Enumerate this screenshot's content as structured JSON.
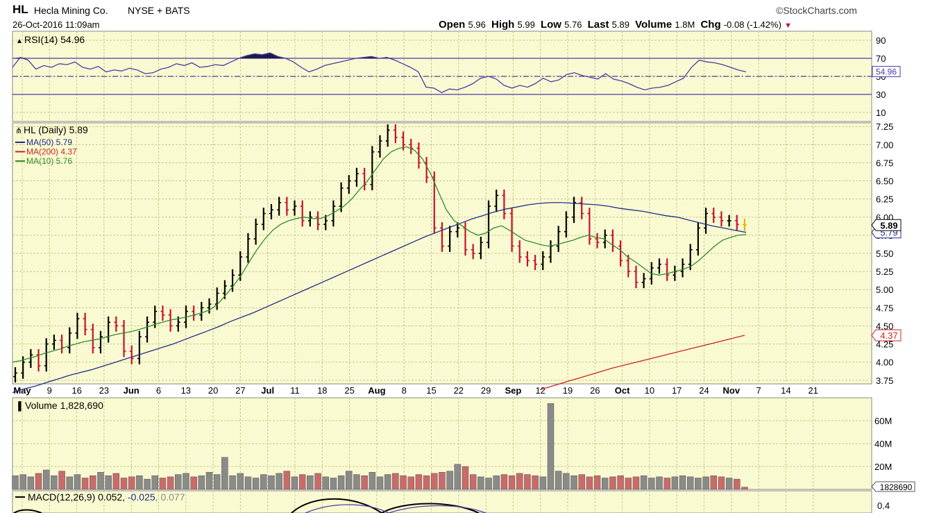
{
  "header": {
    "symbol": "HL",
    "company": "Hecla Mining Co.",
    "exchange": "NYSE + BATS",
    "datetime": "26-Oct-2016 11:09am",
    "brand": "StockCharts.com",
    "open_label": "Open",
    "open": "5.96",
    "high_label": "High",
    "high": "5.99",
    "low_label": "Low",
    "low": "5.76",
    "last_label": "Last",
    "last": "5.89",
    "volume_label": "Volume",
    "volume": "1.8M",
    "chg_label": "Chg",
    "chg": "-0.08 (-1.42%)"
  },
  "colors": {
    "background": "#fafad2",
    "up": "#000000",
    "down": "#c8102e",
    "ma50": "#1f2d8a",
    "ma200": "#cc2222",
    "ma10": "#2e8b2e",
    "rsi": "#4a3aa8",
    "vol_up": "#8a8a8a",
    "vol_down": "#c96b6b"
  },
  "chart_data": [
    {
      "type": "line",
      "title": "RSI(14) 54.96",
      "series": [
        {
          "name": "RSI(14)",
          "values": [
            60,
            71,
            68,
            58,
            62,
            60,
            64,
            63,
            66,
            60,
            58,
            61,
            55,
            57,
            56,
            59,
            57,
            53,
            54,
            58,
            60,
            64,
            62,
            65,
            60,
            61,
            63,
            62,
            66,
            70,
            73,
            75,
            74,
            76,
            72,
            70,
            66,
            60,
            55,
            58,
            62,
            64,
            66,
            68,
            70,
            71,
            72,
            70,
            71,
            68,
            64,
            60,
            55,
            38,
            37,
            32,
            36,
            35,
            38,
            42,
            48,
            50,
            47,
            40,
            37,
            40,
            38,
            42,
            48,
            44,
            46,
            52,
            54,
            51,
            49,
            47,
            53,
            47,
            45,
            42,
            38,
            35,
            37,
            38,
            40,
            44,
            48,
            60,
            68,
            66,
            65,
            63,
            60,
            57,
            55
          ]
        }
      ],
      "last_value": "54.96",
      "y_ticks": [
        "90",
        "70",
        "50",
        "30",
        "10"
      ],
      "levels": [
        70,
        50,
        30
      ],
      "ylim": [
        0,
        100
      ]
    },
    {
      "type": "line",
      "title": "HL (Daily) 5.89",
      "legend": [
        "MA(50) 5.79",
        "MA(200) 4.37",
        "MA(10) 5.76"
      ],
      "series": [
        {
          "name": "HL (Daily)",
          "values": [
            3.85,
            4.0,
            4.1,
            3.95,
            4.25,
            4.3,
            4.2,
            4.4,
            4.6,
            4.45,
            4.2,
            4.35,
            4.55,
            4.5,
            4.15,
            4.05,
            4.35,
            4.55,
            4.7,
            4.65,
            4.5,
            4.55,
            4.7,
            4.65,
            4.75,
            4.8,
            4.95,
            5.05,
            5.2,
            5.45,
            5.7,
            5.9,
            6.05,
            6.1,
            6.2,
            6.1,
            6.15,
            5.95,
            6.0,
            5.9,
            5.95,
            6.15,
            6.4,
            6.5,
            6.6,
            6.45,
            6.9,
            7.05,
            7.2,
            7.1,
            7.0,
            6.95,
            6.75,
            6.55,
            5.85,
            5.6,
            5.8,
            5.85,
            5.55,
            5.5,
            5.65,
            6.15,
            6.3,
            6.05,
            5.6,
            5.45,
            5.4,
            5.35,
            5.45,
            5.6,
            5.8,
            6.0,
            6.2,
            6.05,
            5.7,
            5.65,
            5.75,
            5.6,
            5.4,
            5.25,
            5.1,
            5.15,
            5.3,
            5.35,
            5.2,
            5.25,
            5.35,
            5.55,
            5.85,
            6.05,
            6.0,
            5.95,
            5.95,
            5.9,
            5.89
          ]
        },
        {
          "name": "MA(50)",
          "values": [
            3.58,
            3.63,
            3.67,
            3.72,
            3.77,
            3.82,
            3.86,
            3.9,
            3.95,
            4.0,
            4.05,
            4.1,
            4.15,
            4.2,
            4.25,
            4.31,
            4.37,
            4.43,
            4.49,
            4.56,
            4.62,
            4.68,
            4.75,
            4.82,
            4.89,
            4.96,
            5.03,
            5.1,
            5.17,
            5.24,
            5.31,
            5.38,
            5.45,
            5.52,
            5.59,
            5.66,
            5.73,
            5.79,
            5.85,
            5.91,
            5.97,
            6.02,
            6.07,
            6.11,
            6.14,
            6.17,
            6.19,
            6.2,
            6.2,
            6.19,
            6.18,
            6.17,
            6.15,
            6.12,
            6.1,
            6.08,
            6.05,
            6.02,
            6.0,
            5.96,
            5.92,
            5.88,
            5.85,
            5.82,
            5.79
          ]
        },
        {
          "name": "MA(200)",
          "values": [
            3.62,
            3.68,
            3.74,
            3.8,
            3.86,
            3.92,
            3.97,
            4.02,
            4.07,
            4.12,
            4.17,
            4.22,
            4.27,
            4.32,
            4.37
          ]
        },
        {
          "name": "MA(10)",
          "values": [
            4.0,
            4.02,
            4.05,
            4.08,
            4.12,
            4.15,
            4.18,
            4.22,
            4.25,
            4.28,
            4.3,
            4.32,
            4.35,
            4.38,
            4.4,
            4.42,
            4.45,
            4.48,
            4.52,
            4.55,
            4.58,
            4.6,
            4.62,
            4.65,
            4.68,
            4.72,
            4.8,
            4.92,
            5.05,
            5.2,
            5.38,
            5.55,
            5.7,
            5.82,
            5.9,
            5.95,
            5.98,
            6.0,
            5.98,
            5.98,
            6.02,
            6.08,
            6.15,
            6.25,
            6.38,
            6.5,
            6.65,
            6.8,
            6.9,
            6.95,
            6.97,
            6.92,
            6.8,
            6.6,
            6.35,
            6.1,
            5.95,
            5.88,
            5.8,
            5.75,
            5.78,
            5.85,
            5.88,
            5.82,
            5.75,
            5.68,
            5.65,
            5.62,
            5.6,
            5.62,
            5.65,
            5.68,
            5.72,
            5.75,
            5.72,
            5.7,
            5.62,
            5.55,
            5.45,
            5.38,
            5.3,
            5.22,
            5.2,
            5.22,
            5.25,
            5.28,
            5.32,
            5.4,
            5.5,
            5.6,
            5.68,
            5.72,
            5.75,
            5.76
          ]
        }
      ],
      "y_ticks": [
        "7.25",
        "7.00",
        "6.75",
        "6.50",
        "6.25",
        "6.00",
        "5.75",
        "5.50",
        "5.25",
        "5.00",
        "4.75",
        "4.50",
        "4.25",
        "4.00",
        "3.75"
      ],
      "ylim": [
        3.7,
        7.3
      ],
      "last_labels": [
        "5.89",
        "5.79",
        "4.37"
      ],
      "x_ticks": [
        "May",
        "9",
        "16",
        "23",
        "Jun",
        "6",
        "13",
        "20",
        "27",
        "Jul",
        "11",
        "18",
        "25",
        "Aug",
        "8",
        "15",
        "22",
        "29",
        "Sep",
        "12",
        "19",
        "26",
        "Oct",
        "10",
        "17",
        "24",
        "Nov",
        "7",
        "14",
        "21"
      ]
    },
    {
      "type": "bar",
      "title": "Volume 1,828,690",
      "values": [
        12,
        13,
        11,
        14,
        17,
        12,
        16,
        11,
        13,
        10,
        12,
        15,
        12,
        14,
        10,
        11,
        12,
        9,
        12,
        10,
        11,
        13,
        14,
        11,
        12,
        15,
        13,
        28,
        12,
        14,
        11,
        10,
        13,
        12,
        14,
        16,
        11,
        13,
        12,
        14,
        11,
        10,
        12,
        16,
        13,
        12,
        15,
        11,
        13,
        14,
        12,
        11,
        13,
        12,
        14,
        15,
        16,
        22,
        20,
        13,
        11,
        10,
        12,
        13,
        12,
        14,
        13,
        12,
        11,
        75,
        16,
        14,
        12,
        13,
        11,
        12,
        10,
        11,
        12,
        10,
        11,
        12,
        10,
        11,
        10,
        11,
        12,
        11,
        10,
        11,
        12,
        11,
        10,
        9,
        2
      ],
      "y_ticks": [
        "60M",
        "40M",
        "20M"
      ],
      "last_value": "1828690",
      "ylim": [
        0,
        80
      ]
    },
    {
      "type": "line",
      "title": "MACD(12,26,9)",
      "values_text": [
        "0.052",
        "-0.025",
        "0.077"
      ],
      "y_ticks": [
        "0.4"
      ]
    }
  ]
}
